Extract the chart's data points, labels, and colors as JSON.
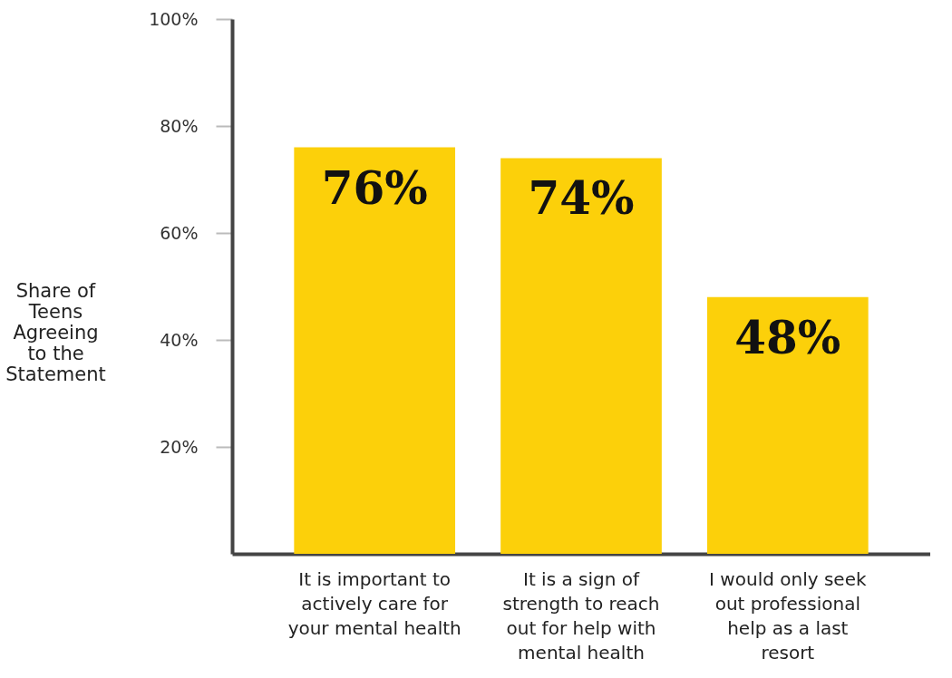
{
  "chart_data": {
    "type": "bar",
    "ylabel": "Share of Teens Agreeing to the Statement",
    "categories": [
      "It is important to actively care for your mental health",
      "It is a sign of strength to reach out for help with mental health",
      "I would only seek out professional help as a last resort"
    ],
    "values": [
      76,
      74,
      48
    ],
    "value_labels": [
      "76%",
      "74%",
      "48%"
    ],
    "color": "#fcd00a",
    "ylim": [
      0,
      100
    ],
    "yticks": [
      {
        "value": 20,
        "label": "20%"
      },
      {
        "value": 40,
        "label": "40%"
      },
      {
        "value": 60,
        "label": "60%"
      },
      {
        "value": 80,
        "label": "80%"
      },
      {
        "value": 100,
        "label": "100%"
      }
    ],
    "grid": false
  }
}
